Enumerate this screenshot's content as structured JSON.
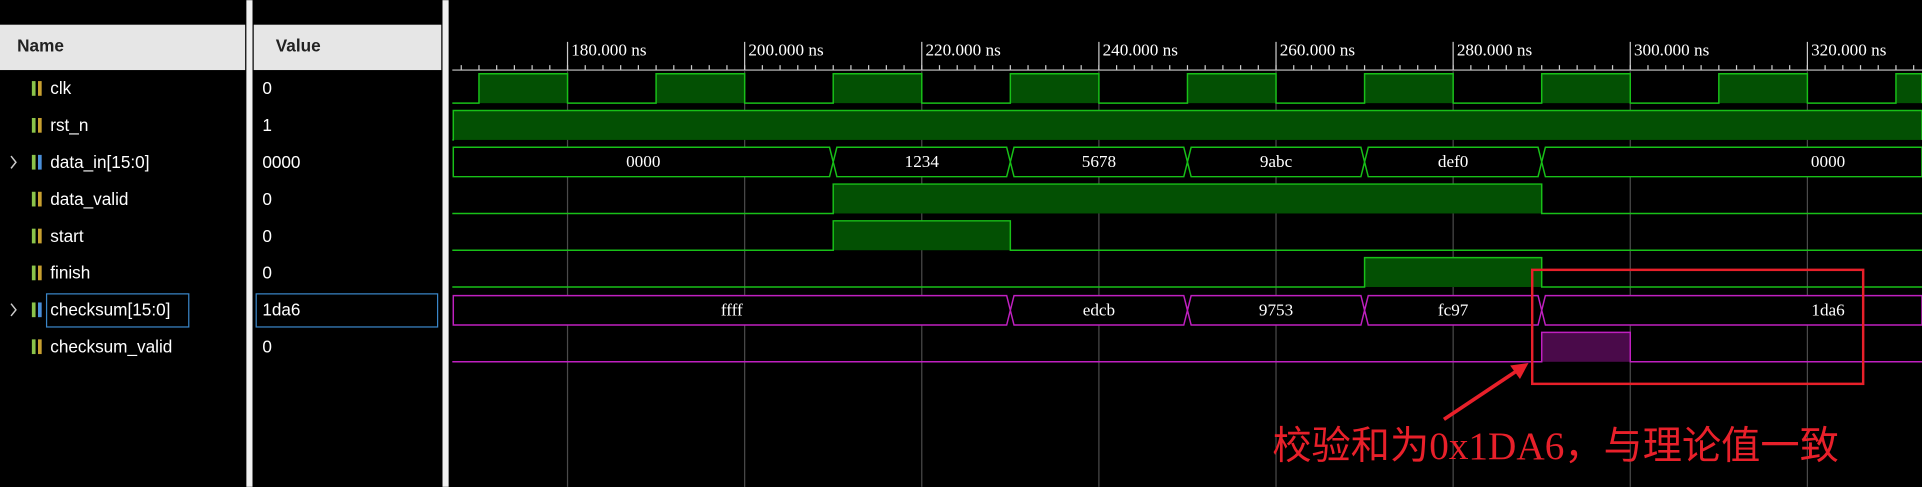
{
  "header": {
    "name": "Name",
    "value": "Value"
  },
  "timeline": {
    "ticks": [
      "180.000 ns",
      "200.000 ns",
      "220.000 ns",
      "240.000 ns",
      "260.000 ns",
      "280.000 ns",
      "300.000 ns",
      "320.000 ns"
    ]
  },
  "signals": [
    {
      "name": "clk",
      "value": "0"
    },
    {
      "name": "rst_n",
      "value": "1"
    },
    {
      "name": "data_in[15:0]",
      "value": "0000",
      "segments": [
        "0000",
        "1234",
        "5678",
        "9abc",
        "def0",
        "0000"
      ]
    },
    {
      "name": "data_valid",
      "value": "0"
    },
    {
      "name": "start",
      "value": "0"
    },
    {
      "name": "finish",
      "value": "0"
    },
    {
      "name": "checksum[15:0]",
      "value": "1da6",
      "segments": [
        "ffff",
        "edcb",
        "9753",
        "fc97",
        "1da6"
      ]
    },
    {
      "name": "checksum_valid",
      "value": "0"
    }
  ],
  "annotation": "校验和为0x1DA6，与理论值一致"
}
